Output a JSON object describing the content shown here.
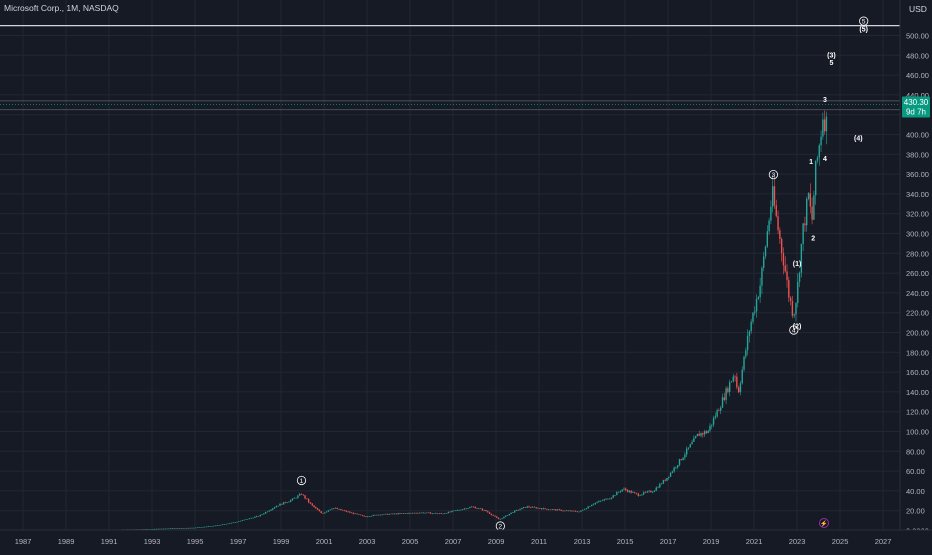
{
  "header": {
    "symbol_title": "Microsoft Corp., 1M, NASDAQ",
    "currency": "USD"
  },
  "price_tag": {
    "price": "430.30",
    "countdown": "9d 7h"
  },
  "colors": {
    "background": "#161a25",
    "up": "#26a69a",
    "down": "#ef5350",
    "grid": "#232734",
    "axis_text": "#b2b5be",
    "label_text": "#ffffff",
    "price_tag": "#089981",
    "marker_circle": "#9c27b0"
  },
  "chart_data": {
    "type": "candlestick",
    "title": "Microsoft Corp., 1M, NASDAQ",
    "xlabel": "",
    "ylabel": "",
    "ylim": [
      0,
      520
    ],
    "xlim": [
      1986.0,
      2027.7
    ],
    "grid": true,
    "y_tick_labels": [
      "0.0000",
      "20.00",
      "40.00",
      "60.00",
      "80.00",
      "100.00",
      "120.00",
      "140.00",
      "160.00",
      "180.00",
      "200.00",
      "220.00",
      "240.00",
      "260.00",
      "280.00",
      "300.00",
      "320.00",
      "340.00",
      "360.00",
      "380.00",
      "400.00",
      "420.00",
      "440.00",
      "460.00",
      "480.00",
      "500.00"
    ],
    "x_tick_labels": [
      "1987",
      "1989",
      "1991",
      "1993",
      "1995",
      "1997",
      "1999",
      "2001",
      "2003",
      "2005",
      "2007",
      "2009",
      "2011",
      "2013",
      "2015",
      "2017",
      "2019",
      "2021",
      "2023",
      "2025",
      "2027"
    ],
    "series": [
      {
        "anchors": [
          [
            1986.2,
            0.1
          ],
          [
            1990,
            0.6
          ],
          [
            1993,
            1.5
          ],
          [
            1995,
            2.8
          ],
          [
            1996,
            5
          ],
          [
            1997,
            9
          ],
          [
            1998,
            15
          ],
          [
            1998.8,
            25
          ],
          [
            1999.5,
            31
          ],
          [
            1999.95,
            37
          ],
          [
            2000.4,
            26
          ],
          [
            2000.9,
            17
          ],
          [
            2001.4,
            23
          ],
          [
            2001.9,
            20
          ],
          [
            2002.4,
            17
          ],
          [
            2002.9,
            14
          ],
          [
            2003.5,
            16
          ],
          [
            2004.5,
            17
          ],
          [
            2005.5,
            18
          ],
          [
            2006.5,
            17
          ],
          [
            2007.3,
            21
          ],
          [
            2007.9,
            24
          ],
          [
            2008.5,
            20
          ],
          [
            2009.15,
            11
          ],
          [
            2009.8,
            19
          ],
          [
            2010.4,
            24
          ],
          [
            2011.2,
            22
          ],
          [
            2012.2,
            20
          ],
          [
            2012.9,
            19
          ],
          [
            2013.5,
            27
          ],
          [
            2014.3,
            33
          ],
          [
            2014.9,
            42
          ],
          [
            2015.6,
            36
          ],
          [
            2016.3,
            40
          ],
          [
            2016.9,
            52
          ],
          [
            2017.6,
            72
          ],
          [
            2018.4,
            97
          ],
          [
            2018.85,
            100
          ],
          [
            2019.5,
            130
          ],
          [
            2020.1,
            160
          ],
          [
            2020.25,
            138
          ],
          [
            2020.8,
            205
          ],
          [
            2021.3,
            250
          ],
          [
            2021.85,
            340
          ],
          [
            2022.15,
            300
          ],
          [
            2022.4,
            270
          ],
          [
            2022.6,
            240
          ],
          [
            2022.83,
            218
          ],
          [
            2023.0,
            240
          ],
          [
            2023.25,
            300
          ],
          [
            2023.55,
            340
          ],
          [
            2023.68,
            308
          ],
          [
            2023.85,
            360
          ],
          [
            2024.1,
            400
          ],
          [
            2024.2,
            420
          ],
          [
            2024.25,
            428
          ],
          [
            2024.33,
            398
          ],
          [
            2024.42,
            430
          ]
        ]
      }
    ],
    "last_price": 430.3,
    "annotations": [
      {
        "text": "1",
        "circled": true,
        "x": 1999.95,
        "y": 48
      },
      {
        "text": "2",
        "circled": true,
        "x": 2009.2,
        "y": 2
      },
      {
        "text": "3",
        "circled": true,
        "x": 2021.9,
        "y": 357
      },
      {
        "text": "4",
        "circled": true,
        "x": 2022.85,
        "y": 200
      },
      {
        "text": "5",
        "circled": true,
        "x": 2026.1,
        "y": 512
      },
      {
        "text": "(5)",
        "circled": false,
        "x": 2026.1,
        "y": 504
      },
      {
        "text": "(3)",
        "circled": false,
        "x": 2024.6,
        "y": 478
      },
      {
        "text": "5",
        "circled": false,
        "x": 2024.6,
        "y": 470
      },
      {
        "text": "3",
        "circled": false,
        "x": 2024.3,
        "y": 433
      },
      {
        "text": "(4)",
        "circled": false,
        "x": 2025.85,
        "y": 394
      },
      {
        "text": "1",
        "circled": false,
        "x": 2023.65,
        "y": 370
      },
      {
        "text": "4",
        "circled": false,
        "x": 2024.3,
        "y": 373
      },
      {
        "text": "2",
        "circled": false,
        "x": 2023.75,
        "y": 293
      },
      {
        "text": "(1)",
        "circled": false,
        "x": 2023.0,
        "y": 267
      },
      {
        "text": "(2)",
        "circled": false,
        "x": 2023.0,
        "y": 204
      }
    ],
    "horizontal_lines": [
      {
        "y": 510,
        "style": "solid",
        "color": "#d1d4dc"
      },
      {
        "y": 434,
        "style": "solid",
        "color": "#5d606b"
      },
      {
        "y": 430.3,
        "style": "dotted",
        "color": "#089981"
      },
      {
        "y": 425,
        "style": "solid",
        "color": "#5d606b"
      }
    ]
  }
}
